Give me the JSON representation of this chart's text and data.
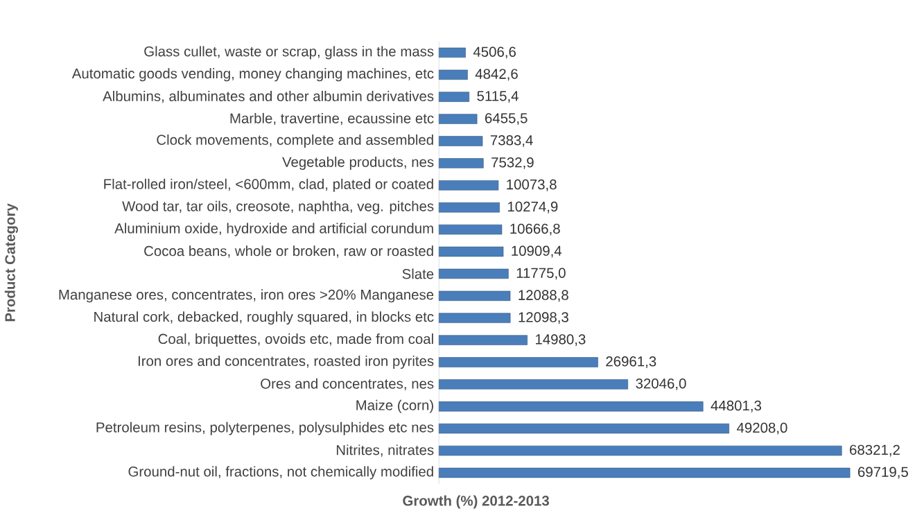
{
  "chart_data": {
    "type": "bar",
    "orientation": "horizontal",
    "xlabel": "Growth (%) 2012-2013",
    "ylabel": "Product Category",
    "color": "#4a7ebb",
    "categories": [
      "Glass cullet, waste or scrap, glass in the mass",
      "Automatic goods vending, money changing machines, etc",
      "Albumins, albuminates and other albumin derivatives",
      "Marble, travertine, ecaussine etc",
      "Clock movements, complete and assembled",
      "Vegetable products, nes",
      "Flat-rolled iron/steel, <600mm, clad, plated or coated",
      "Wood tar, tar oils, creosote, naphtha, veg. pitches",
      "Aluminium oxide, hydroxide and artificial corundum",
      "Cocoa beans, whole or broken, raw or roasted",
      "Slate",
      "Manganese ores, concentrates, iron ores >20% Manganese",
      "Natural cork, debacked, roughly squared, in blocks etc",
      "Coal, briquettes, ovoids etc, made from coal",
      "Iron ores and concentrates, roasted iron pyrites",
      "Ores and concentrates, nes",
      "Maize (corn)",
      "Petroleum resins, polyterpenes, polysulphides etc nes",
      "Nitrites, nitrates",
      "Ground-nut oil, fractions, not chemically modified"
    ],
    "values": [
      4506.6,
      4842.6,
      5115.4,
      6455.5,
      7383.4,
      7532.9,
      10073.8,
      10274.9,
      10666.8,
      10909.4,
      11775.0,
      12088.8,
      12098.3,
      14980.3,
      26961.3,
      32046.0,
      44801.3,
      49208.0,
      68321.2,
      69719.5
    ],
    "value_labels": [
      "4506,6",
      "4842,6",
      "5115,4",
      "6455,5",
      "7383,4",
      "7532,9",
      "10073,8",
      "10274,9",
      "10666,8",
      "10909,4",
      "11775,0",
      "12088,8",
      "12098,3",
      "14980,3",
      "26961,3",
      "32046,0",
      "44801,3",
      "49208,0",
      "68321,2",
      "69719,5"
    ]
  }
}
